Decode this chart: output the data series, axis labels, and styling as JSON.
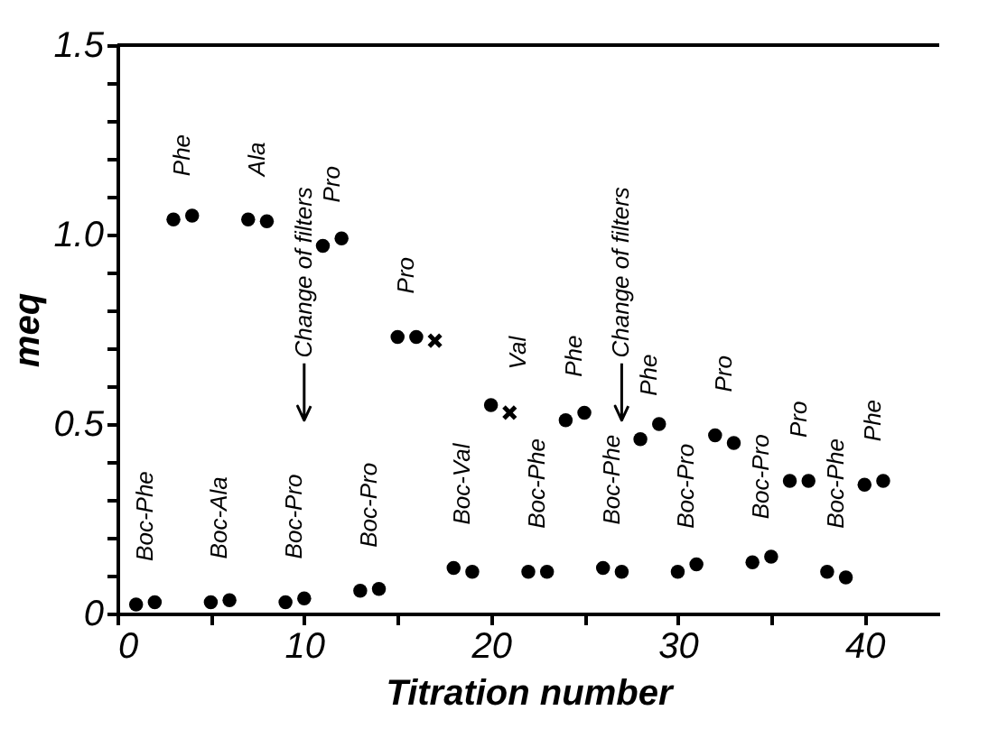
{
  "chart_data": {
    "type": "scatter",
    "xlabel": "Titration number",
    "ylabel": "meq",
    "xlim": [
      0,
      44
    ],
    "ylim": [
      0,
      1.5
    ],
    "xticks": [
      0,
      {
        "value": 5,
        "label": null
      },
      10,
      {
        "value": 15,
        "label": null
      },
      20,
      {
        "value": 25,
        "label": null
      },
      30,
      {
        "value": 35,
        "label": null
      },
      40
    ],
    "yticks": [
      0,
      {
        "value": 0.1,
        "label": null
      },
      {
        "value": 0.2,
        "label": null
      },
      {
        "value": 0.3,
        "label": null
      },
      {
        "value": 0.4,
        "label": null
      },
      0.5,
      {
        "value": 0.6,
        "label": null
      },
      {
        "value": 0.7,
        "label": null
      },
      {
        "value": 0.8,
        "label": null
      },
      {
        "value": 0.9,
        "label": null
      },
      {
        "value": 1.0,
        "label": "1.0"
      },
      {
        "value": 1.1,
        "label": null
      },
      {
        "value": 1.2,
        "label": null
      },
      {
        "value": 1.3,
        "label": null
      },
      {
        "value": 1.4,
        "label": null
      },
      1.5
    ],
    "grid": false,
    "series": [
      {
        "marker": "circle",
        "color": "#000000",
        "x": [
          1,
          2,
          3,
          4,
          5,
          6,
          7,
          8,
          9,
          10,
          11,
          12,
          13,
          14,
          15,
          16,
          18,
          19,
          20,
          22,
          23,
          24,
          25,
          26,
          27,
          28,
          29,
          30,
          31,
          32,
          33,
          34,
          35,
          36,
          37,
          38,
          39,
          40,
          41
        ],
        "values": [
          0.024,
          0.03,
          1.04,
          1.05,
          0.03,
          0.035,
          1.04,
          1.035,
          0.03,
          0.04,
          0.97,
          0.99,
          0.06,
          0.065,
          0.73,
          0.73,
          0.12,
          0.11,
          0.55,
          0.11,
          0.11,
          0.51,
          0.53,
          0.12,
          0.11,
          0.46,
          0.5,
          0.11,
          0.13,
          0.47,
          0.45,
          0.135,
          0.15,
          0.35,
          0.35,
          0.11,
          0.095,
          0.34,
          0.35
        ]
      },
      {
        "marker": "cross",
        "color": "#000000",
        "x": [
          17,
          21
        ],
        "values": [
          0.72,
          0.53
        ]
      }
    ],
    "ref_lines": [
      {
        "axis": "x",
        "value": 10,
        "label": "Change of filters"
      },
      {
        "axis": "x",
        "value": 27,
        "label": "Change of filters"
      }
    ],
    "annotations": [
      {
        "text": "Boc-Phe",
        "x": 1,
        "y": 0.024
      },
      {
        "text": "Phe",
        "x": 3,
        "y": 1.04
      },
      {
        "text": "Boc-Ala",
        "x": 5,
        "y": 0.03
      },
      {
        "text": "Ala",
        "x": 7,
        "y": 1.04
      },
      {
        "text": "Boc-Pro",
        "x": 9,
        "y": 0.03
      },
      {
        "text": "Pro",
        "x": 11,
        "y": 0.97
      },
      {
        "text": "Boc-Pro",
        "x": 13,
        "y": 0.06
      },
      {
        "text": "Pro",
        "x": 15,
        "y": 0.73
      },
      {
        "text": "Boc-Val",
        "x": 18,
        "y": 0.12
      },
      {
        "text": "Val",
        "x": 21,
        "y": 0.53
      },
      {
        "text": "Boc-Phe",
        "x": 22,
        "y": 0.11
      },
      {
        "text": "Phe",
        "x": 24,
        "y": 0.51
      },
      {
        "text": "Boc-Phe",
        "x": 26,
        "y": 0.12
      },
      {
        "text": "Phe",
        "x": 28,
        "y": 0.46
      },
      {
        "text": "Boc-Pro",
        "x": 30,
        "y": 0.11
      },
      {
        "text": "Pro",
        "x": 32,
        "y": 0.47
      },
      {
        "text": "Boc-Pro",
        "x": 34,
        "y": 0.135
      },
      {
        "text": "Pro",
        "x": 36,
        "y": 0.35
      },
      {
        "text": "Boc-Phe",
        "x": 38,
        "y": 0.11
      },
      {
        "text": "Phe",
        "x": 40,
        "y": 0.34
      }
    ]
  }
}
